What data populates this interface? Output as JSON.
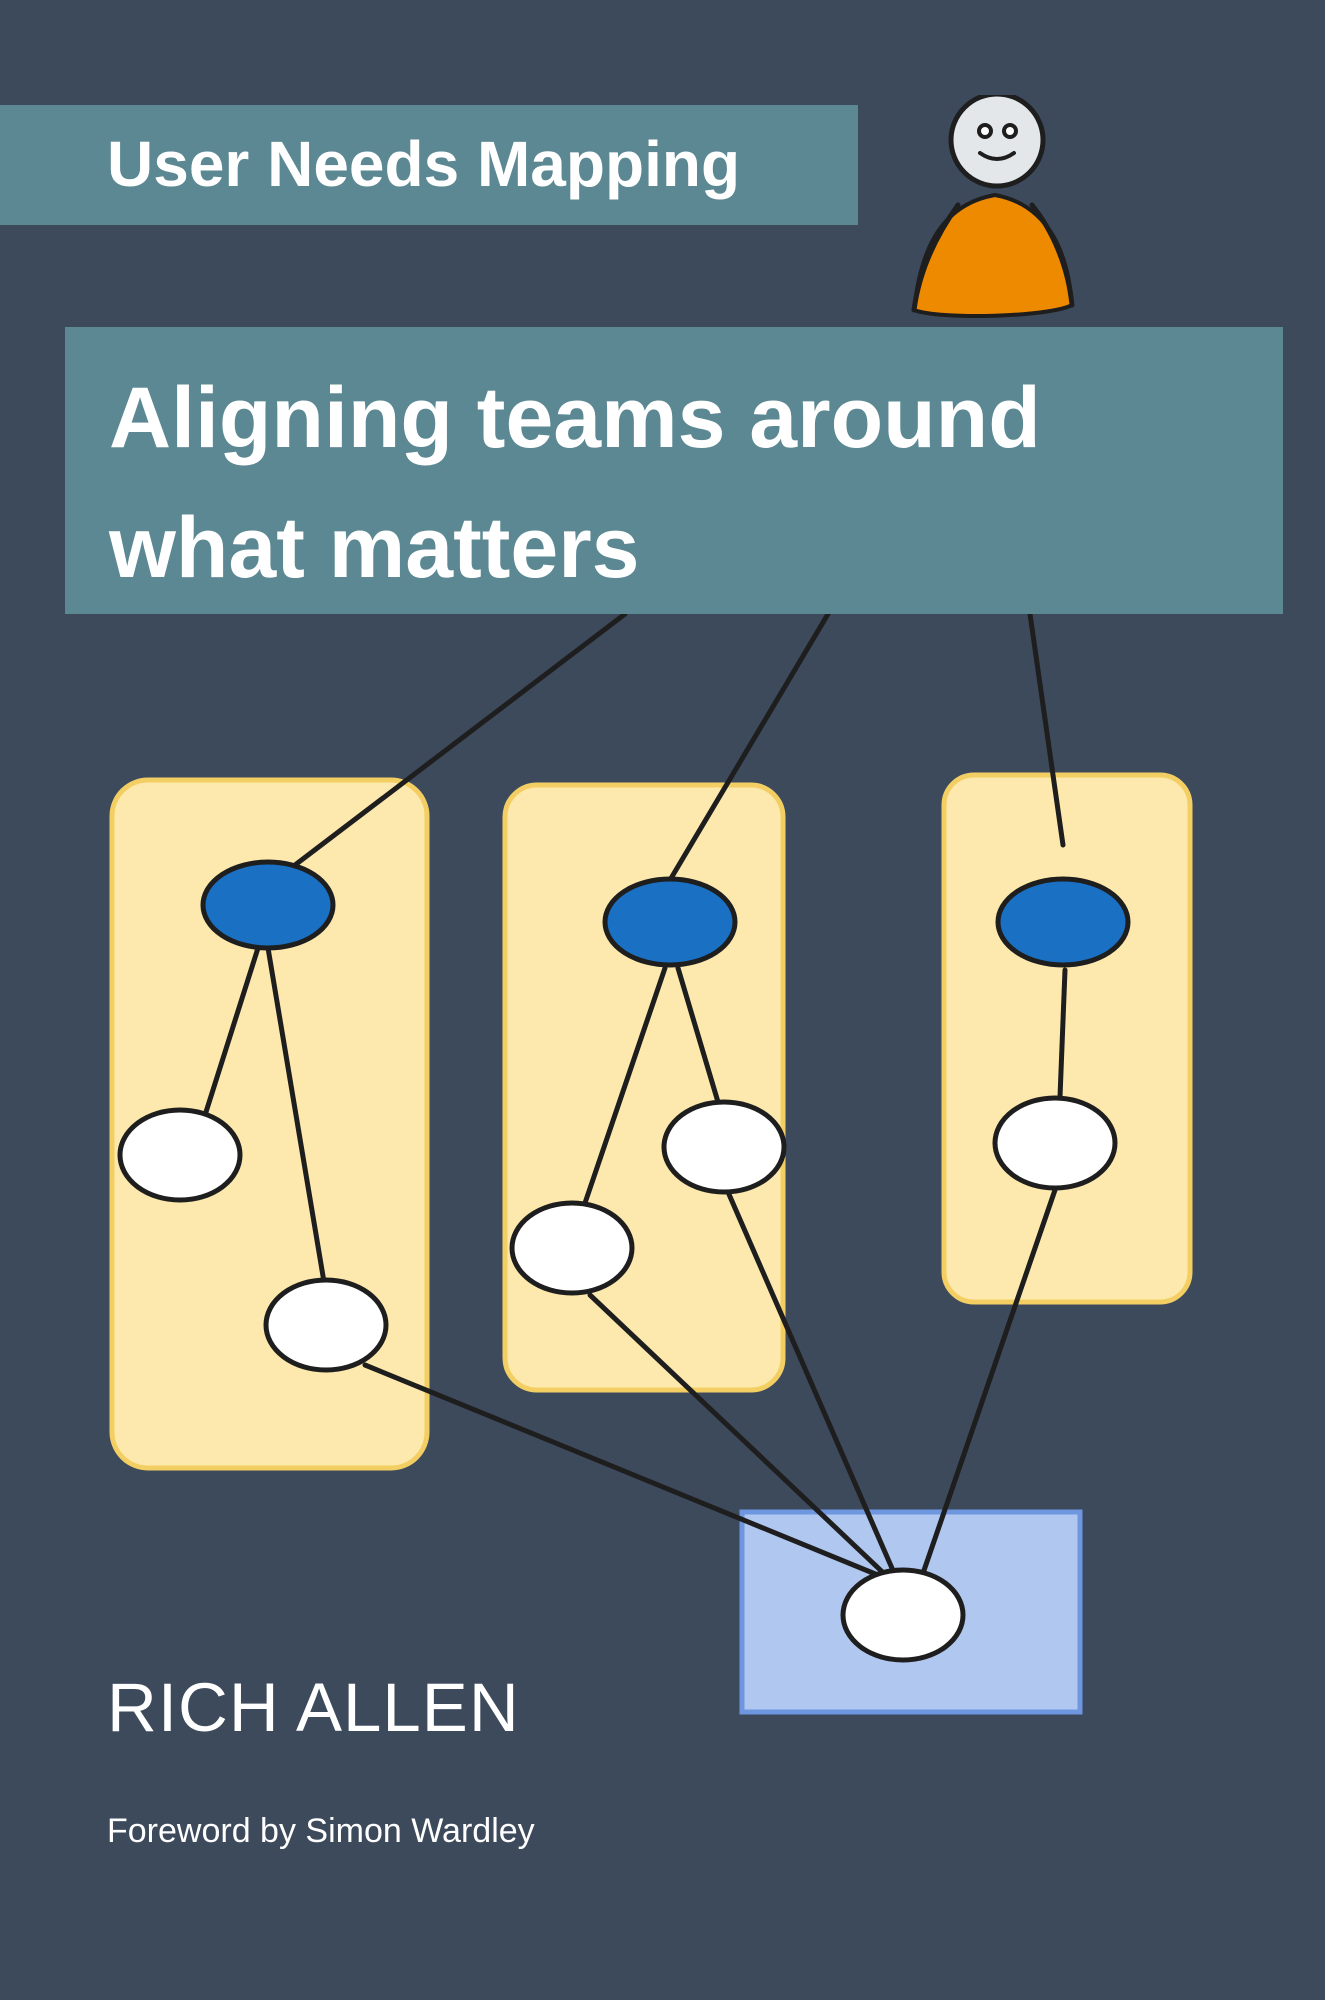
{
  "cover": {
    "series_title": "User Needs Mapping",
    "title_line_1": "Aligning teams around",
    "title_line_2": "what matters",
    "author": "RICH ALLEN",
    "foreword": "Foreword by Simon Wardley"
  },
  "colors": {
    "background": "#3d4a5c",
    "banner": "#5b8892",
    "group_fill": "#fde9ad",
    "user_need_node": "#1a70c2",
    "component_node": "#ffffff",
    "shared_box": "#b0c7ef",
    "mascot_body": "#ee8a00",
    "mascot_face": "#e4e7ea",
    "line": "#1e1e1e"
  },
  "icons": {
    "mascot": "smiling-stick-person-icon"
  }
}
